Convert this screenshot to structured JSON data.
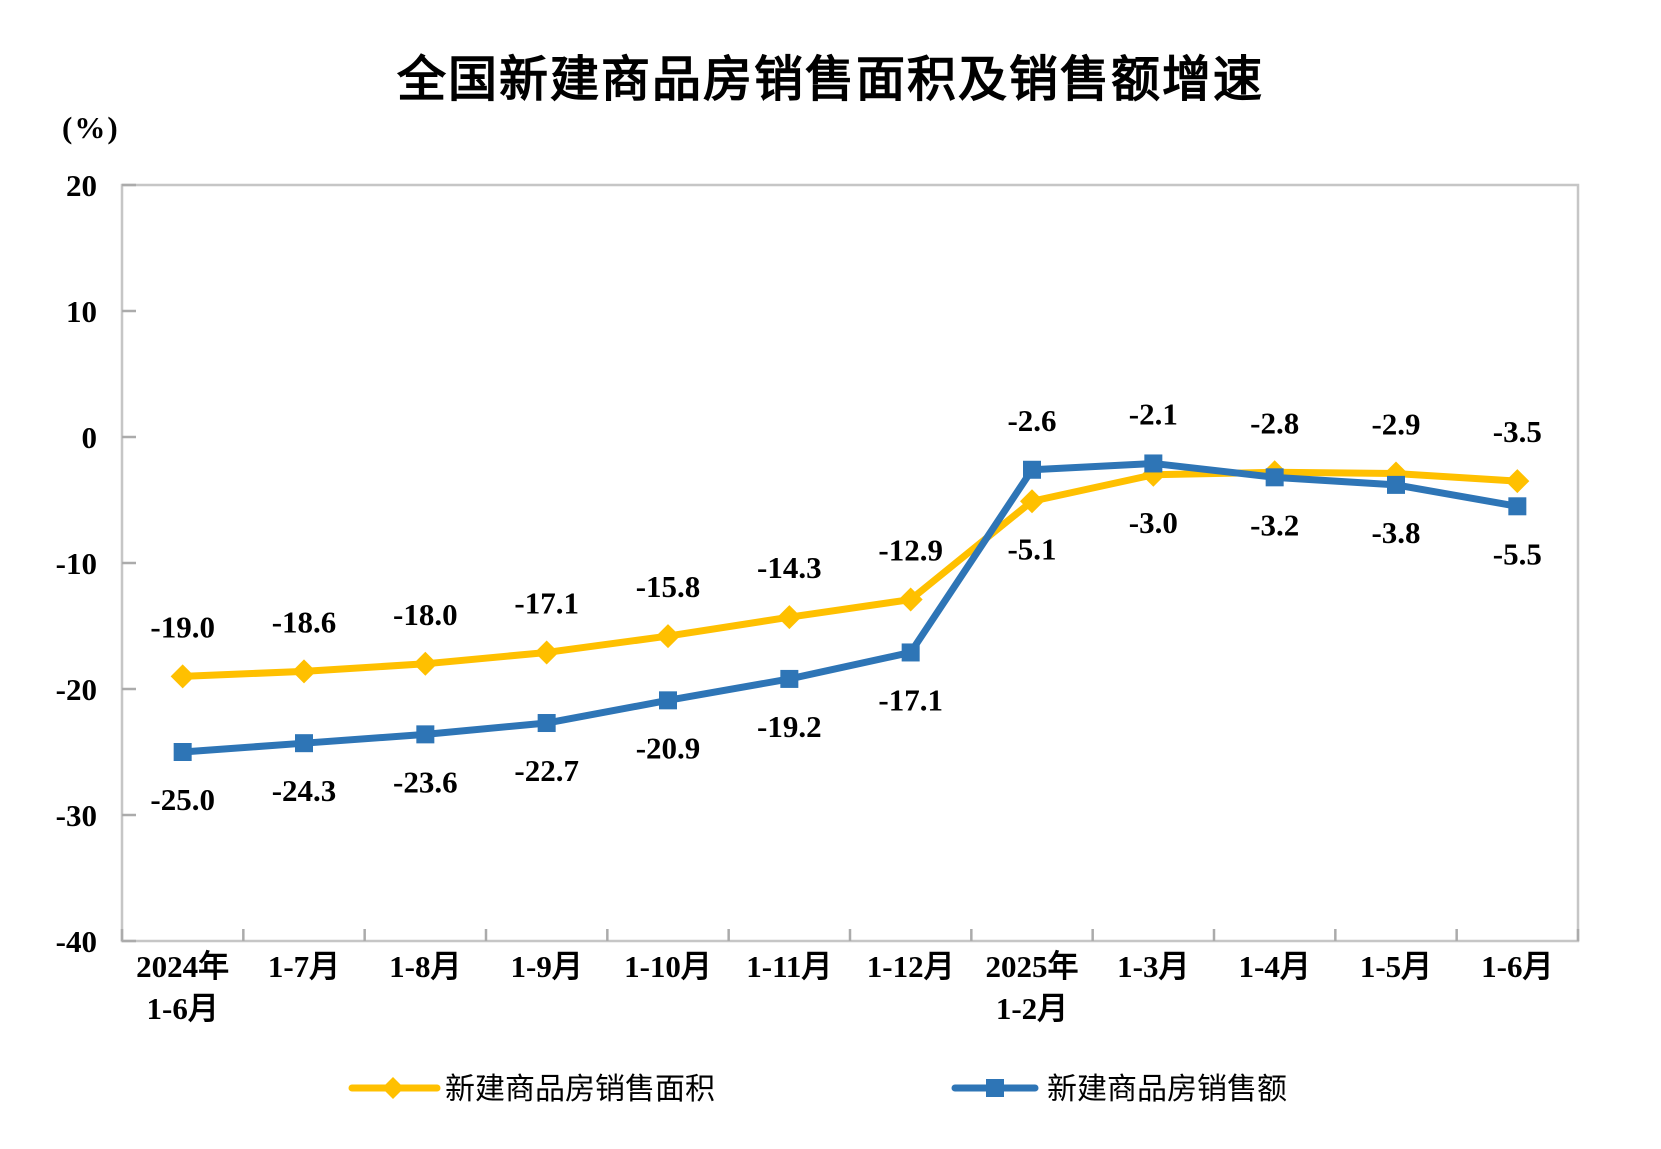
{
  "title": "全国新建商品房销售面积及销售额增速",
  "y_axis": {
    "unit": "(%)",
    "ticks": [
      20,
      10,
      0,
      -10,
      -20,
      -30,
      -40
    ]
  },
  "chart_data": {
    "type": "line",
    "title": "全国新建商品房销售面积及销售额增速",
    "xlabel": "",
    "ylabel": "(%)",
    "ylim": [
      -40,
      20
    ],
    "grid": false,
    "legend_position": "bottom",
    "categories": [
      {
        "label": "2024年",
        "sublabel": "1-6月"
      },
      {
        "label": "1-7月",
        "sublabel": ""
      },
      {
        "label": "1-8月",
        "sublabel": ""
      },
      {
        "label": "1-9月",
        "sublabel": ""
      },
      {
        "label": "1-10月",
        "sublabel": ""
      },
      {
        "label": "1-11月",
        "sublabel": ""
      },
      {
        "label": "1-12月",
        "sublabel": ""
      },
      {
        "label": "2025年",
        "sublabel": "1-2月"
      },
      {
        "label": "1-3月",
        "sublabel": ""
      },
      {
        "label": "1-4月",
        "sublabel": ""
      },
      {
        "label": "1-5月",
        "sublabel": ""
      },
      {
        "label": "1-6月",
        "sublabel": ""
      }
    ],
    "series": [
      {
        "name": "新建商品房销售面积",
        "color": "#FFC000",
        "marker": "diamond",
        "values": [
          -19.0,
          -18.6,
          -18.0,
          -17.1,
          -15.8,
          -14.3,
          -12.9,
          -5.1,
          -3.0,
          -2.8,
          -2.9,
          -3.5
        ],
        "label_positions": [
          "above",
          "above",
          "above",
          "above",
          "above",
          "above",
          "above",
          "below",
          "below",
          "above",
          "above",
          "above"
        ]
      },
      {
        "name": "新建商品房销售额",
        "color": "#2E75B6",
        "marker": "square",
        "values": [
          -25.0,
          -24.3,
          -23.6,
          -22.7,
          -20.9,
          -19.2,
          -17.1,
          -2.6,
          -2.1,
          -3.2,
          -3.8,
          -5.5
        ],
        "label_positions": [
          "below",
          "below",
          "below",
          "below",
          "below",
          "below",
          "below",
          "above",
          "above",
          "below",
          "below",
          "below"
        ]
      }
    ]
  },
  "legend": [
    {
      "label": "新建商品房销售面积",
      "color": "#FFC000",
      "marker": "diamond"
    },
    {
      "label": "新建商品房销售额",
      "color": "#2E75B6",
      "marker": "square"
    }
  ],
  "colors": {
    "frame": "#C6C6C6",
    "axis": "#ABABAB",
    "text": "#000000"
  }
}
